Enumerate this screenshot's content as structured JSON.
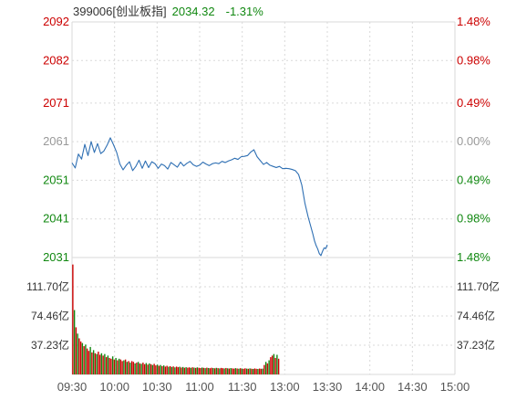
{
  "header": {
    "code_name": "399006[创业板指]",
    "price": "2034.32",
    "change_pct": "-1.31%"
  },
  "colors": {
    "up": "#cc0000",
    "down": "#118811",
    "neutral": "#999999",
    "price_line": "#2e6fb3",
    "grid": "#d9d9d9",
    "header_text": "#333333"
  },
  "chart_data": [
    {
      "type": "line",
      "panel": "price",
      "y_left_ticks": [
        "2092",
        "2082",
        "2071",
        "2061",
        "2051",
        "2041",
        "2031"
      ],
      "y_left_values": [
        2092,
        2082,
        2071,
        2061,
        2051,
        2041,
        2031
      ],
      "y_left_colors": [
        "up",
        "up",
        "up",
        "neutral",
        "down",
        "down",
        "down"
      ],
      "y_right_ticks": [
        "1.48%",
        "0.98%",
        "0.49%",
        "0.00%",
        "0.49%",
        "0.98%",
        "1.48%"
      ],
      "y_right_colors": [
        "up",
        "up",
        "up",
        "neutral",
        "down",
        "down",
        "down"
      ],
      "ylim": [
        2031,
        2092
      ],
      "x_ticks": [
        "09:30",
        "10:00",
        "10:30",
        "11:00",
        "11:30",
        "13:00",
        "13:30",
        "14:00",
        "14:30",
        "15:00"
      ],
      "total_minutes": 240,
      "grid": true,
      "series": [
        {
          "minutes": [
            0,
            2,
            4,
            6,
            8,
            10,
            12,
            14,
            16,
            18,
            20,
            22,
            24,
            26,
            28,
            30,
            32,
            34,
            36,
            38,
            40,
            42,
            44,
            46,
            48,
            50,
            52,
            54,
            56,
            58,
            60,
            62,
            64,
            66,
            68,
            70,
            72,
            74,
            76,
            78,
            80,
            82,
            84,
            86,
            88,
            90,
            92,
            94,
            96,
            98,
            100,
            102,
            104,
            106,
            108,
            110,
            112,
            114,
            116,
            118,
            120,
            122,
            124,
            126,
            128,
            130,
            132,
            134,
            136,
            138,
            140,
            142,
            144,
            146,
            148,
            150,
            151,
            152,
            153,
            154,
            155,
            156,
            157,
            158,
            159,
            160
          ],
          "values": [
            2055.5,
            2054.2,
            2057.8,
            2056.5,
            2060.3,
            2057.4,
            2061.0,
            2058.2,
            2060.5,
            2057.9,
            2058.6,
            2060.1,
            2062.0,
            2060.2,
            2058.2,
            2055.2,
            2053.7,
            2054.9,
            2055.8,
            2053.5,
            2054.6,
            2056.2,
            2054.1,
            2056.0,
            2054.3,
            2055.8,
            2055.3,
            2054.1,
            2055.2,
            2054.8,
            2053.9,
            2055.6,
            2055.0,
            2054.4,
            2055.7,
            2054.7,
            2055.4,
            2055.9,
            2055.0,
            2054.6,
            2054.9,
            2055.7,
            2055.2,
            2054.8,
            2055.3,
            2055.5,
            2055.3,
            2055.9,
            2055.6,
            2056.0,
            2056.3,
            2056.7,
            2056.4,
            2057.1,
            2057.2,
            2057.4,
            2058.3,
            2058.9,
            2057.1,
            2056.1,
            2055.1,
            2055.6,
            2054.9,
            2054.6,
            2054.3,
            2054.6,
            2054.0,
            2054.1,
            2054.0,
            2053.8,
            2053.5,
            2052.5,
            2049.8,
            2045.0,
            2041.5,
            2038.5,
            2037.0,
            2035.3,
            2034.1,
            2033.2,
            2032.0,
            2031.5,
            2032.6,
            2033.5,
            2033.3,
            2034.3
          ]
        }
      ]
    },
    {
      "type": "bar",
      "panel": "volume",
      "y_left_ticks": [
        "111.70亿",
        "74.46亿",
        "37.23亿"
      ],
      "y_right_ticks": [
        "111.70亿",
        "74.46亿",
        "37.23亿"
      ],
      "y_tick_values": [
        111.7,
        74.46,
        37.23
      ],
      "ylim": [
        0,
        148.9
      ],
      "unit": "亿",
      "start_minute": 0,
      "values": [
        140.0,
        82.0,
        60.0,
        52.0,
        46.0,
        42.0,
        40.0,
        36.0,
        38.0,
        33.0,
        30.0,
        35.0,
        28.0,
        31.0,
        27.0,
        26.0,
        29.0,
        25.0,
        27.0,
        24.0,
        26.0,
        22.0,
        24.0,
        21.0,
        20.0,
        23.0,
        19.0,
        21.0,
        18.0,
        20.0,
        19.0,
        17.0,
        18.0,
        19.0,
        16.0,
        17.0,
        15.0,
        17.0,
        16.0,
        14.0,
        15.0,
        16.0,
        14.0,
        13.5,
        15.0,
        13.0,
        14.5,
        12.5,
        14.0,
        13.0,
        12.0,
        13.5,
        11.5,
        12.5,
        11.0,
        12.0,
        10.5,
        11.5,
        10.0,
        11.0,
        9.8,
        10.5,
        9.5,
        10.2,
        9.0,
        10.0,
        9.2,
        9.8,
        8.8,
        9.5,
        8.5,
        9.2,
        8.6,
        9.0,
        8.4,
        9.1,
        8.7,
        8.3,
        9.0,
        8.5,
        8.2,
        8.8,
        8.4,
        8.0,
        8.6,
        8.2,
        7.9,
        8.5,
        8.1,
        7.8,
        8.4,
        8.0,
        7.7,
        8.3,
        7.9,
        7.6,
        8.2,
        7.8,
        7.5,
        8.1,
        7.7,
        7.4,
        8.0,
        7.6,
        7.3,
        7.9,
        7.5,
        7.2,
        7.8,
        7.4,
        7.2,
        7.7,
        7.3,
        7.0,
        7.6,
        7.2,
        7.0,
        7.5,
        7.2,
        7.4,
        12.0,
        16.0,
        14.0,
        18.0,
        22.0,
        24.0,
        26.0,
        21.0,
        25.0,
        20.0
      ],
      "directions": [
        "up",
        "down",
        "up",
        "down",
        "up",
        "up",
        "down",
        "up",
        "down",
        "up",
        "up",
        "down",
        "up",
        "down",
        "up",
        "down",
        "up",
        "up",
        "down",
        "up",
        "down",
        "up",
        "down",
        "up",
        "up",
        "down",
        "up",
        "down",
        "up",
        "down",
        "up",
        "up",
        "down",
        "up",
        "down",
        "up",
        "down",
        "up",
        "up",
        "down",
        "up",
        "down",
        "up",
        "down",
        "up",
        "up",
        "down",
        "up",
        "down",
        "up",
        "down",
        "up",
        "up",
        "down",
        "up",
        "down",
        "up",
        "down",
        "up",
        "up",
        "down",
        "up",
        "down",
        "up",
        "down",
        "up",
        "up",
        "down",
        "up",
        "down",
        "up",
        "down",
        "up",
        "up",
        "down",
        "up",
        "down",
        "up",
        "down",
        "up",
        "up",
        "down",
        "up",
        "down",
        "up",
        "down",
        "up",
        "up",
        "down",
        "up",
        "down",
        "up",
        "down",
        "up",
        "up",
        "down",
        "up",
        "down",
        "up",
        "down",
        "up",
        "up",
        "down",
        "up",
        "down",
        "up",
        "down",
        "up",
        "up",
        "down",
        "up",
        "down",
        "up",
        "down",
        "up",
        "up",
        "down",
        "up",
        "up",
        "down",
        "up",
        "down",
        "up",
        "down",
        "up",
        "up",
        "down",
        "up",
        "down",
        "up"
      ]
    }
  ]
}
